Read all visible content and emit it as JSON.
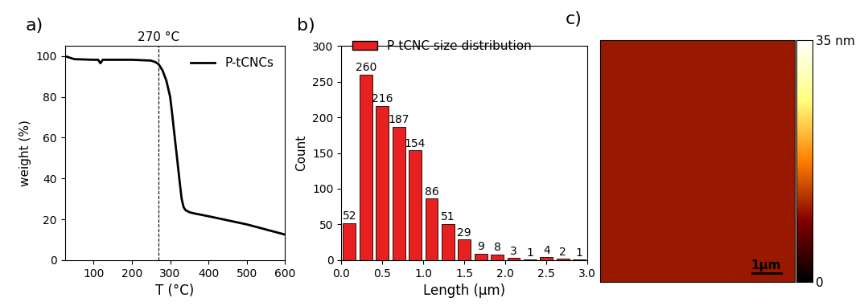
{
  "chart_data": [
    {
      "type": "line",
      "title": "a)",
      "x_label": "T (°C)",
      "y_label": "weight (%)",
      "series": [
        {
          "name": "P-tCNCs",
          "color": "#000000",
          "x": [
            25,
            50,
            100,
            112,
            118,
            124,
            140,
            200,
            250,
            262,
            270,
            280,
            290,
            300,
            305,
            312,
            318,
            325,
            330,
            335,
            340,
            350,
            360,
            400,
            450,
            500,
            550,
            600
          ],
          "values": [
            100,
            98.5,
            98.2,
            98.2,
            96.5,
            98.2,
            98.2,
            98.2,
            97.8,
            97,
            96,
            93,
            88,
            80,
            72,
            60,
            50,
            38,
            30,
            26,
            24.5,
            23.5,
            23,
            21.5,
            19.5,
            17.5,
            15,
            12.5
          ]
        }
      ],
      "annotation": {
        "x": 270,
        "label": "270 °C"
      },
      "xlim": [
        25,
        600
      ],
      "xticks": [
        100,
        200,
        300,
        400,
        500,
        600
      ],
      "ylim": [
        0,
        105
      ],
      "yticks": [
        0,
        20,
        40,
        60,
        80,
        100
      ],
      "legend": "upper right"
    },
    {
      "type": "histogram",
      "title": "b)",
      "x_label": "Length (μm)",
      "y_label": "Count",
      "series": [
        {
          "name": "P-tCNC size distribution",
          "color": "#e8201f"
        }
      ],
      "bins": [
        0.0,
        0.2,
        0.4,
        0.6,
        0.8,
        1.0,
        1.2,
        1.4,
        1.6,
        1.8,
        2.0,
        2.2,
        2.4,
        2.6,
        2.8,
        3.0
      ],
      "values": [
        52,
        260,
        216,
        187,
        154,
        86,
        51,
        29,
        9,
        8,
        3,
        1,
        4,
        2,
        1
      ],
      "data_labels": true,
      "xlim": [
        0.0,
        3.0
      ],
      "xticks": [
        {
          "value": 0.0,
          "label": "0.0"
        },
        {
          "value": 0.5,
          "label": "0.5"
        },
        {
          "value": 1.0,
          "label": "1.0"
        },
        {
          "value": 1.5,
          "label": "1.5"
        },
        {
          "value": 2.0,
          "label": "2.0"
        },
        {
          "value": 2.5,
          "label": "2.5"
        },
        {
          "value": 3.0,
          "label": "3.0"
        }
      ],
      "ylim": [
        0,
        300
      ],
      "yticks": [
        0,
        50,
        100,
        150,
        200,
        250,
        300
      ],
      "legend": "upper left"
    },
    {
      "type": "image",
      "title": "c)",
      "scale_bar": "1μm",
      "colorbar": {
        "range": [
          0,
          35
        ],
        "ticks": [
          {
            "value": 0,
            "label": "0"
          },
          {
            "value": 35,
            "label": "35 nm"
          }
        ]
      },
      "tick_labels": false
    }
  ]
}
